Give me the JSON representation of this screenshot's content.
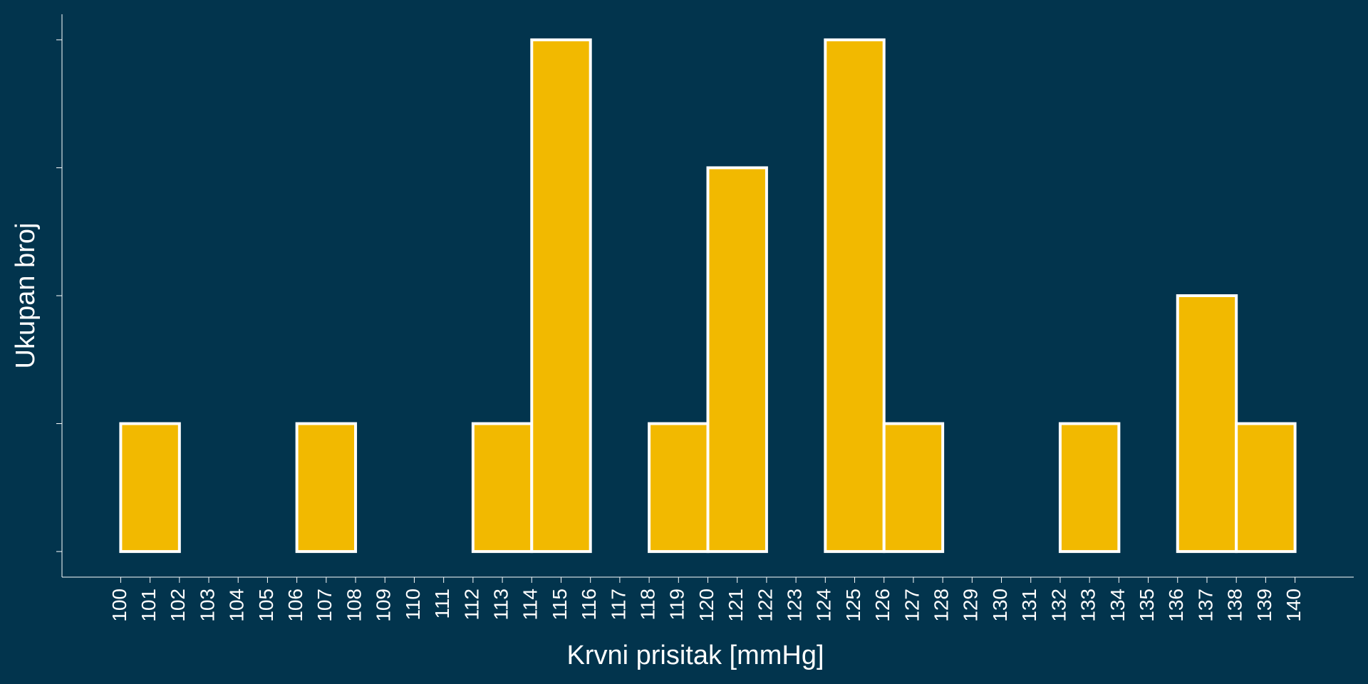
{
  "colors": {
    "background": "#02344d",
    "bar_fill": "#f2b900",
    "bar_stroke": "#ffffff",
    "axis": "#ffffff"
  },
  "chart_data": {
    "type": "bar",
    "histogram": true,
    "title": "",
    "xlabel": "Krvni prisitak [mmHg]",
    "ylabel": "Ukupan broj",
    "bin_width": 2,
    "bins": [
      {
        "start": 100,
        "end": 102,
        "value": 1
      },
      {
        "start": 102,
        "end": 104,
        "value": 0
      },
      {
        "start": 104,
        "end": 106,
        "value": 0
      },
      {
        "start": 106,
        "end": 108,
        "value": 1
      },
      {
        "start": 108,
        "end": 110,
        "value": 0
      },
      {
        "start": 110,
        "end": 112,
        "value": 0
      },
      {
        "start": 112,
        "end": 114,
        "value": 1
      },
      {
        "start": 114,
        "end": 116,
        "value": 4
      },
      {
        "start": 116,
        "end": 118,
        "value": 0
      },
      {
        "start": 118,
        "end": 120,
        "value": 1
      },
      {
        "start": 120,
        "end": 122,
        "value": 3
      },
      {
        "start": 122,
        "end": 124,
        "value": 0
      },
      {
        "start": 124,
        "end": 126,
        "value": 4
      },
      {
        "start": 126,
        "end": 128,
        "value": 1
      },
      {
        "start": 128,
        "end": 130,
        "value": 0
      },
      {
        "start": 130,
        "end": 132,
        "value": 0
      },
      {
        "start": 132,
        "end": 134,
        "value": 1
      },
      {
        "start": 134,
        "end": 136,
        "value": 0
      },
      {
        "start": 136,
        "end": 138,
        "value": 2
      },
      {
        "start": 138,
        "end": 140,
        "value": 1
      }
    ],
    "x_ticks": [
      "100",
      "101",
      "102",
      "103",
      "104",
      "105",
      "106",
      "107",
      "108",
      "109",
      "110",
      "111",
      "112",
      "113",
      "114",
      "115",
      "116",
      "117",
      "118",
      "119",
      "120",
      "121",
      "122",
      "123",
      "124",
      "125",
      "126",
      "127",
      "128",
      "129",
      "130",
      "131",
      "132",
      "133",
      "134",
      "135",
      "136",
      "137",
      "138",
      "139",
      "140"
    ],
    "y_tick_values": [
      0,
      1,
      2,
      3,
      4
    ],
    "y_tick_labels_visible": false,
    "xlim": [
      98,
      142
    ],
    "ylim": [
      -0.2,
      4.2
    ],
    "grid": false,
    "legend": "none"
  }
}
